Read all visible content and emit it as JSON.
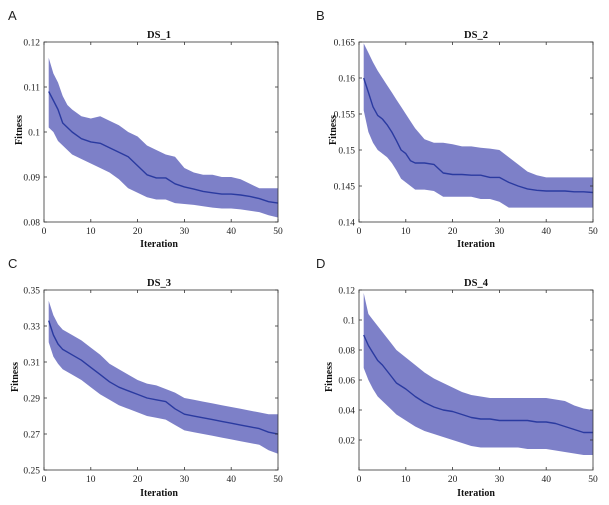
{
  "figure": {
    "band_color": "#6f72c2",
    "line_color": "#2a3aa0",
    "axis_color": "#333333"
  },
  "chart_data": [
    {
      "panel": "A",
      "type": "area",
      "title": "DS_1",
      "xlabel": "Iteration",
      "ylabel": "Fitness",
      "xlim": [
        0,
        50
      ],
      "ylim": [
        0.08,
        0.12
      ],
      "xticks": [
        0,
        10,
        20,
        30,
        40,
        50
      ],
      "xtick_labels": [
        "0",
        "10",
        "20",
        "30",
        "40",
        "50"
      ],
      "yticks": [
        0.08,
        0.09,
        0.1,
        0.11,
        0.12
      ],
      "ytick_labels": [
        "0.08",
        "0.09",
        "0.1",
        "0.11",
        "0.12"
      ],
      "grid": false,
      "series": [
        {
          "x": [
            1,
            2,
            3,
            4,
            5,
            6,
            8,
            10,
            12,
            14,
            16,
            18,
            20,
            22,
            24,
            26,
            28,
            30,
            32,
            34,
            36,
            38,
            40,
            42,
            44,
            46,
            48,
            50
          ],
          "mean": [
            0.109,
            0.107,
            0.105,
            0.102,
            0.101,
            0.1,
            0.0985,
            0.0978,
            0.0975,
            0.0965,
            0.0955,
            0.0945,
            0.0925,
            0.0905,
            0.0898,
            0.0898,
            0.0885,
            0.0878,
            0.0873,
            0.0868,
            0.0865,
            0.0862,
            0.0862,
            0.086,
            0.0857,
            0.0852,
            0.0845,
            0.0842
          ],
          "upper": [
            0.1165,
            0.113,
            0.111,
            0.108,
            0.106,
            0.105,
            0.1035,
            0.103,
            0.1035,
            0.1025,
            0.1015,
            0.1,
            0.099,
            0.097,
            0.096,
            0.095,
            0.0945,
            0.092,
            0.091,
            0.0905,
            0.0905,
            0.09,
            0.09,
            0.0895,
            0.0885,
            0.0875,
            0.0875,
            0.0875
          ],
          "lower": [
            0.101,
            0.1,
            0.098,
            0.097,
            0.096,
            0.095,
            0.094,
            0.093,
            0.092,
            0.091,
            0.0895,
            0.0875,
            0.0865,
            0.0855,
            0.085,
            0.085,
            0.0842,
            0.084,
            0.0838,
            0.0835,
            0.0832,
            0.083,
            0.083,
            0.0828,
            0.0825,
            0.0822,
            0.0815,
            0.081
          ]
        }
      ]
    },
    {
      "panel": "B",
      "type": "area",
      "title": "DS_2",
      "xlabel": "Iteration",
      "ylabel": "Fitness",
      "xlim": [
        0,
        50
      ],
      "ylim": [
        0.14,
        0.165
      ],
      "xticks": [
        0,
        10,
        20,
        30,
        40,
        50
      ],
      "xtick_labels": [
        "0",
        "10",
        "20",
        "30",
        "40",
        "50"
      ],
      "yticks": [
        0.14,
        0.145,
        0.15,
        0.155,
        0.16,
        0.165
      ],
      "ytick_labels": [
        "0.14",
        "0.145",
        "0.15",
        "0.155",
        "0.16",
        "0.165"
      ],
      "grid": false,
      "series": [
        {
          "x": [
            1,
            2,
            3,
            4,
            5,
            6,
            7,
            8,
            9,
            10,
            11,
            12,
            14,
            16,
            18,
            20,
            22,
            24,
            26,
            28,
            30,
            32,
            34,
            36,
            38,
            40,
            42,
            44,
            46,
            48,
            50
          ],
          "mean": [
            0.16,
            0.158,
            0.156,
            0.1548,
            0.1543,
            0.1535,
            0.1525,
            0.1513,
            0.15,
            0.1495,
            0.1485,
            0.1482,
            0.1482,
            0.148,
            0.1468,
            0.1466,
            0.1466,
            0.1465,
            0.1465,
            0.1462,
            0.1462,
            0.1455,
            0.145,
            0.1446,
            0.1444,
            0.1443,
            0.1443,
            0.1443,
            0.1442,
            0.1442,
            0.1441
          ],
          "upper": [
            0.1648,
            0.1635,
            0.1622,
            0.161,
            0.16,
            0.159,
            0.158,
            0.157,
            0.156,
            0.155,
            0.154,
            0.153,
            0.1515,
            0.151,
            0.151,
            0.1508,
            0.1505,
            0.1505,
            0.1503,
            0.1502,
            0.15,
            0.149,
            0.148,
            0.147,
            0.1465,
            0.1462,
            0.1462,
            0.1462,
            0.1462,
            0.1462,
            0.1462
          ],
          "lower": [
            0.1555,
            0.1525,
            0.151,
            0.15,
            0.1495,
            0.149,
            0.1482,
            0.1472,
            0.146,
            0.1455,
            0.145,
            0.1445,
            0.1445,
            0.1443,
            0.1435,
            0.1435,
            0.1435,
            0.1435,
            0.1432,
            0.1432,
            0.1428,
            0.142,
            0.142,
            0.142,
            0.142,
            0.142,
            0.142,
            0.142,
            0.142,
            0.142,
            0.142
          ]
        }
      ]
    },
    {
      "panel": "C",
      "type": "area",
      "title": "DS_3",
      "xlabel": "Iteration",
      "ylabel": "Fitness",
      "xlim": [
        0,
        50
      ],
      "ylim": [
        0.25,
        0.35
      ],
      "xticks": [
        0,
        10,
        20,
        30,
        40,
        50
      ],
      "xtick_labels": [
        "0",
        "10",
        "20",
        "30",
        "40",
        "50"
      ],
      "yticks": [
        0.25,
        0.27,
        0.29,
        0.31,
        0.33,
        0.35
      ],
      "ytick_labels": [
        "0.25",
        "0.27",
        "0.29",
        "0.31",
        "0.33",
        "0.35"
      ],
      "grid": false,
      "series": [
        {
          "x": [
            1,
            2,
            3,
            4,
            6,
            8,
            10,
            12,
            14,
            16,
            18,
            20,
            22,
            24,
            26,
            28,
            30,
            32,
            34,
            36,
            38,
            40,
            42,
            44,
            46,
            48,
            50
          ],
          "mean": [
            0.333,
            0.325,
            0.32,
            0.317,
            0.314,
            0.311,
            0.307,
            0.303,
            0.299,
            0.296,
            0.294,
            0.292,
            0.29,
            0.289,
            0.288,
            0.284,
            0.281,
            0.28,
            0.279,
            0.278,
            0.277,
            0.276,
            0.275,
            0.274,
            0.273,
            0.271,
            0.27
          ],
          "upper": [
            0.344,
            0.336,
            0.331,
            0.328,
            0.325,
            0.322,
            0.318,
            0.314,
            0.309,
            0.306,
            0.303,
            0.3,
            0.298,
            0.297,
            0.295,
            0.293,
            0.29,
            0.289,
            0.288,
            0.287,
            0.286,
            0.285,
            0.284,
            0.283,
            0.282,
            0.281,
            0.281
          ],
          "lower": [
            0.321,
            0.313,
            0.309,
            0.306,
            0.303,
            0.3,
            0.296,
            0.292,
            0.289,
            0.286,
            0.284,
            0.282,
            0.28,
            0.279,
            0.278,
            0.275,
            0.272,
            0.271,
            0.27,
            0.269,
            0.268,
            0.267,
            0.266,
            0.265,
            0.264,
            0.261,
            0.259
          ]
        }
      ]
    },
    {
      "panel": "D",
      "type": "area",
      "title": "DS_4",
      "xlabel": "Iteration",
      "ylabel": "Fitness",
      "xlim": [
        0,
        50
      ],
      "ylim": [
        0,
        0.12
      ],
      "xticks": [
        0,
        10,
        20,
        30,
        40,
        50
      ],
      "xtick_labels": [
        "0",
        "10",
        "20",
        "30",
        "40",
        "50"
      ],
      "yticks": [
        0.02,
        0.04,
        0.06,
        0.08,
        0.1,
        0.12
      ],
      "ytick_labels": [
        "0.02",
        "0.04",
        "0.06",
        "0.08",
        "0.1",
        "0.12"
      ],
      "grid": false,
      "series": [
        {
          "x": [
            1,
            2,
            3,
            4,
            5,
            6,
            7,
            8,
            10,
            12,
            14,
            16,
            18,
            20,
            22,
            24,
            26,
            28,
            30,
            32,
            34,
            36,
            38,
            40,
            42,
            44,
            46,
            48,
            50
          ],
          "mean": [
            0.09,
            0.083,
            0.078,
            0.073,
            0.07,
            0.066,
            0.062,
            0.058,
            0.054,
            0.049,
            0.045,
            0.042,
            0.04,
            0.039,
            0.037,
            0.035,
            0.034,
            0.034,
            0.033,
            0.033,
            0.033,
            0.033,
            0.032,
            0.032,
            0.031,
            0.029,
            0.027,
            0.025,
            0.025
          ],
          "upper": [
            0.118,
            0.104,
            0.1,
            0.096,
            0.092,
            0.088,
            0.084,
            0.08,
            0.075,
            0.07,
            0.065,
            0.061,
            0.058,
            0.055,
            0.052,
            0.05,
            0.049,
            0.048,
            0.048,
            0.048,
            0.048,
            0.048,
            0.048,
            0.048,
            0.047,
            0.046,
            0.043,
            0.041,
            0.04
          ],
          "lower": [
            0.068,
            0.06,
            0.054,
            0.049,
            0.046,
            0.043,
            0.04,
            0.037,
            0.033,
            0.029,
            0.026,
            0.024,
            0.022,
            0.02,
            0.018,
            0.016,
            0.015,
            0.015,
            0.015,
            0.015,
            0.015,
            0.014,
            0.014,
            0.014,
            0.013,
            0.012,
            0.011,
            0.01,
            0.01
          ]
        }
      ]
    }
  ]
}
